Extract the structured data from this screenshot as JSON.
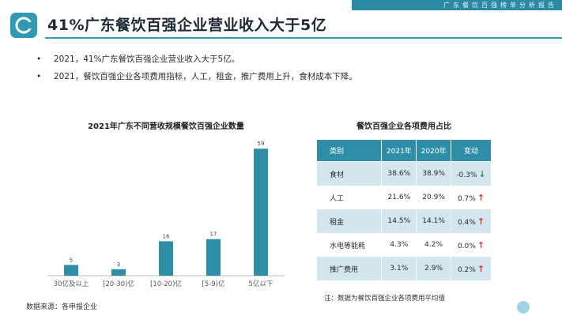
{
  "header": {
    "report_name": "广东餐饮百强榜单分析报告",
    "title": "41%广东餐饮百强企业营业收入大于5亿"
  },
  "bullets": [
    "2021，41%广东餐饮百强企业营业收入大于5亿。",
    "2021，餐饮百强企业各项费用指标，人工，租金，推广费用上升，食材成本下降。"
  ],
  "chart_data": {
    "type": "bar",
    "title": "2021年广东不同营收规模餐饮百强企业数量",
    "categories": [
      "30亿及以上",
      "[20-30)亿",
      "[10-20)亿",
      "[5-9)亿",
      "5亿以下"
    ],
    "values": [
      5,
      3,
      16,
      17,
      59
    ],
    "ylim": [
      0,
      62
    ],
    "grid": false,
    "color": "#2e8ea8"
  },
  "table": {
    "title": "餐饮百强企业各项费用占比",
    "headers": [
      "类别",
      "2021年",
      "2020年",
      "变动"
    ],
    "rows": [
      {
        "category": "食材",
        "y2021": "38.6%",
        "y2020": "38.9%",
        "change": "-0.3%",
        "direction": "down"
      },
      {
        "category": "人工",
        "y2021": "21.6%",
        "y2020": "20.9%",
        "change": "0.7%",
        "direction": "up"
      },
      {
        "category": "租金",
        "y2021": "14.5%",
        "y2020": "14.1%",
        "change": "0.4%",
        "direction": "up"
      },
      {
        "category": "水电等能耗",
        "y2021": "4.3%",
        "y2020": "4.2%",
        "change": "0.0%",
        "direction": "up"
      },
      {
        "category": "推广费用",
        "y2021": "3.1%",
        "y2020": "2.9%",
        "change": "0.2%",
        "direction": "up"
      }
    ]
  },
  "note": "注：数据为餐饮百强企业各项费用平均值",
  "source": "数据来源：各申报企业",
  "colors": {
    "accent": "#2f9bb3",
    "up": "#d9352b",
    "down": "#2a9a45"
  }
}
